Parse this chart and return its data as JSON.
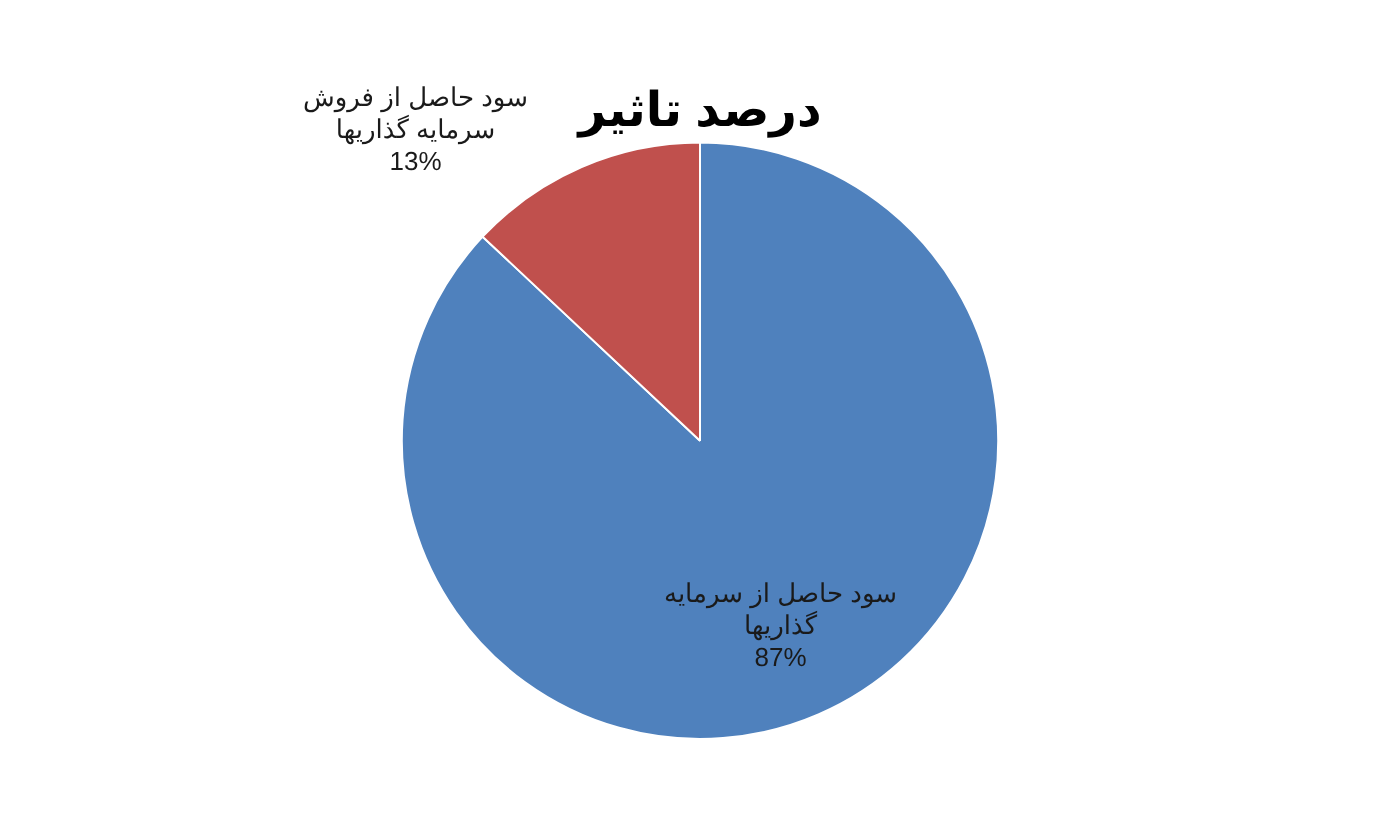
{
  "chart_data": {
    "type": "pie",
    "title": "درصد تاثیر",
    "categories": [
      "سود حاصل از سرمایه گذاریها",
      "سود حاصل از فروش سرمایه گذاریها"
    ],
    "values": [
      87,
      13
    ],
    "colors": [
      "#4f81bd",
      "#c0504d"
    ],
    "value_labels": [
      "87%",
      "13%"
    ],
    "legend": false
  }
}
